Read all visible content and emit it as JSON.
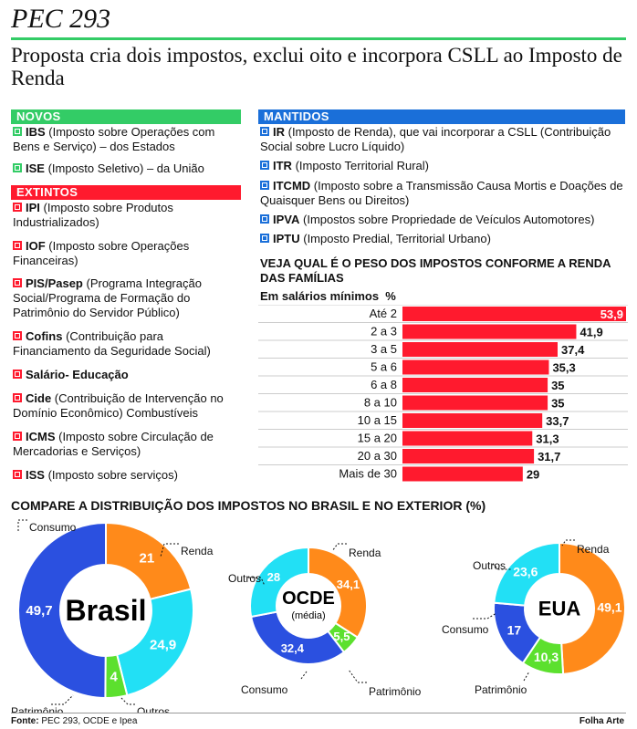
{
  "header": {
    "kicker": "PEC 293",
    "headline": "Proposta cria dois impostos, exclui oito e incorpora CSLL ao Imposto de Renda"
  },
  "novos": {
    "title": "NOVOS",
    "items": [
      {
        "code": "IBS",
        "text": " (Imposto sobre Operações com Bens e Serviço) – dos Estados"
      },
      {
        "code": "ISE",
        "text": " (Imposto Seletivo) – da União"
      }
    ]
  },
  "extintos": {
    "title": "EXTINTOS",
    "items": [
      {
        "code": "IPI",
        "text": " (Imposto sobre Produtos Industrializados)"
      },
      {
        "code": "IOF",
        "text": " (Imposto sobre Operações Financeiras)"
      },
      {
        "code": "PIS/Pasep",
        "text": " (Programa Integração Social/Programa de Formação do Patrimônio do Servidor Público)"
      },
      {
        "code": "Cofins",
        "text": " (Contribuição para Financiamento da Seguridade Social)"
      },
      {
        "code": "Salário- Educação",
        "text": ""
      },
      {
        "code": "Cide",
        "text": " (Contribuição de Intervenção no Domínio Econômico) Combustíveis"
      },
      {
        "code": "ICMS",
        "text": " (Imposto sobre Circulação de Mercadorias e Serviços)"
      },
      {
        "code": "ISS",
        "text": " (Imposto sobre serviços)"
      }
    ]
  },
  "mantidos": {
    "title": "MANTIDOS",
    "items": [
      {
        "code": "IR",
        "text": " (Imposto de Renda), que vai incorporar a CSLL (Contribuição Social sobre Lucro Líquido)"
      },
      {
        "code": "ITR",
        "text": " (Imposto Territorial Rural)"
      },
      {
        "code": "ITCMD",
        "text": " (Imposto sobre a Transmissão Causa Mortis e Doações de Quaisquer Bens ou Direitos)"
      },
      {
        "code": "IPVA",
        "text": " (Impostos sobre Propriedade de Veículos Automotores)"
      },
      {
        "code": "IPTU",
        "text": " (Imposto Predial, Territorial Urbano)"
      }
    ]
  },
  "colors": {
    "green": "#33cc66",
    "red": "#ff1a2e",
    "blue": "#1a6fd9",
    "donut_blue": "#2b50e0",
    "donut_orange": "#ff8a1a",
    "donut_cyan": "#22e0f5",
    "donut_green": "#5ce02e"
  },
  "footer": {
    "source_label": "Fonte:",
    "source_text": " PEC 293, OCDE e Ipea",
    "credit": "Folha Arte"
  },
  "chart_data": [
    {
      "type": "bar",
      "orientation": "horizontal",
      "title": "VEJA QUAL É O PESO DOS IMPOSTOS CONFORME A RENDA DAS FAMÍLIAS",
      "subtitle": "Em salários mínimos",
      "unit": "%",
      "categories": [
        "Até 2",
        "2 a 3",
        "3 a 5",
        "5 a 6",
        "6 a 8",
        "8 a 10",
        "10 a 15",
        "15 a 20",
        "20 a 30",
        "Mais de 30"
      ],
      "values": [
        53.9,
        41.9,
        37.4,
        35.3,
        35,
        35,
        33.7,
        31.3,
        31.7,
        29
      ],
      "value_labels": [
        "53,9",
        "41,9",
        "37,4",
        "35,3",
        "35",
        "35",
        "33,7",
        "31,3",
        "31,7",
        "29"
      ],
      "color": "#ff1a2e"
    },
    {
      "type": "pie",
      "title": "COMPARE A DISTRIBUIÇÃO DOS IMPOSTOS NO BRASIL E NO EXTERIOR (%)",
      "charts": [
        {
          "name": "Brasil",
          "subname": "",
          "slices": [
            {
              "label": "Renda",
              "value": 21,
              "value_label": "21",
              "color": "#ff8a1a"
            },
            {
              "label": "Outros",
              "value": 24.9,
              "value_label": "24,9",
              "color": "#22e0f5"
            },
            {
              "label": "Patrimônio",
              "value": 4,
              "value_label": "4",
              "color": "#5ce02e"
            },
            {
              "label": "Consumo",
              "value": 49.7,
              "value_label": "49,7",
              "color": "#2b50e0"
            }
          ]
        },
        {
          "name": "OCDE",
          "subname": "(média)",
          "slices": [
            {
              "label": "Renda",
              "value": 34.1,
              "value_label": "34,1",
              "color": "#ff8a1a"
            },
            {
              "label": "Patrimônio",
              "value": 5.5,
              "value_label": "5,5",
              "color": "#5ce02e"
            },
            {
              "label": "Consumo",
              "value": 32.4,
              "value_label": "32,4",
              "color": "#2b50e0"
            },
            {
              "label": "Outros",
              "value": 28,
              "value_label": "28",
              "color": "#22e0f5"
            }
          ]
        },
        {
          "name": "EUA",
          "subname": "",
          "slices": [
            {
              "label": "Renda",
              "value": 49.1,
              "value_label": "49,1",
              "color": "#ff8a1a"
            },
            {
              "label": "Patrimônio",
              "value": 10.3,
              "value_label": "10,3",
              "color": "#5ce02e"
            },
            {
              "label": "Consumo",
              "value": 17,
              "value_label": "17",
              "color": "#2b50e0"
            },
            {
              "label": "Outros",
              "value": 23.6,
              "value_label": "23,6",
              "color": "#22e0f5"
            }
          ]
        }
      ]
    }
  ]
}
